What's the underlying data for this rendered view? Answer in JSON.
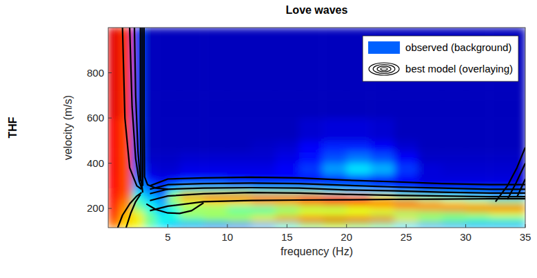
{
  "chart_data": {
    "type": "heatmap",
    "title": "Love waves",
    "row_label": "THF",
    "x_label": "frequency (Hz)",
    "y_label": "velocity (m/s)",
    "xlim": [
      0,
      35
    ],
    "ylim": [
      115,
      1000
    ],
    "xticks": [
      5,
      10,
      15,
      20,
      25,
      30,
      35
    ],
    "yticks": [
      200,
      400,
      600,
      800
    ],
    "legend": "upper right",
    "color_range": [
      0,
      1
    ],
    "x_edges": [
      0,
      1,
      2,
      3,
      4,
      5,
      6,
      8,
      10,
      12,
      14,
      16,
      18,
      20,
      22,
      24,
      26,
      28,
      30,
      32,
      35
    ],
    "y_edges": [
      115,
      140,
      165,
      190,
      215,
      240,
      265,
      290,
      320,
      350,
      400,
      450,
      500,
      600,
      700,
      800,
      900,
      1000
    ],
    "series": [
      {
        "name": "observed (background)",
        "type": "heatmap",
        "color": "jet",
        "cells": [
          [
            0.75,
            0.65,
            0.6,
            0.45,
            0.35,
            0.3,
            0.28,
            0.25,
            0.25,
            0.3,
            0.4,
            0.5,
            0.55,
            0.5,
            0.45,
            0.35,
            0.3,
            0.3,
            0.3,
            0.3
          ],
          [
            0.8,
            0.68,
            0.65,
            0.5,
            0.4,
            0.4,
            0.45,
            0.5,
            0.55,
            0.65,
            0.75,
            0.85,
            0.9,
            0.88,
            0.8,
            0.65,
            0.55,
            0.5,
            0.45,
            0.45
          ],
          [
            0.82,
            0.7,
            0.6,
            0.45,
            0.35,
            0.4,
            0.55,
            0.55,
            0.5,
            0.5,
            0.55,
            0.6,
            0.6,
            0.6,
            0.55,
            0.5,
            0.5,
            0.5,
            0.55,
            0.6
          ],
          [
            0.85,
            0.72,
            0.5,
            0.4,
            0.3,
            0.4,
            0.5,
            0.5,
            0.45,
            0.45,
            0.5,
            0.55,
            0.55,
            0.6,
            0.65,
            0.7,
            0.75,
            0.8,
            0.85,
            0.85
          ],
          [
            0.85,
            0.75,
            0.45,
            0.35,
            0.3,
            0.5,
            0.6,
            0.65,
            0.65,
            0.7,
            0.7,
            0.75,
            0.8,
            0.85,
            0.85,
            0.8,
            0.7,
            0.65,
            0.6,
            0.55
          ],
          [
            0.86,
            0.78,
            0.4,
            0.3,
            0.25,
            0.55,
            0.75,
            0.8,
            0.8,
            0.8,
            0.8,
            0.85,
            0.85,
            0.75,
            0.6,
            0.5,
            0.45,
            0.4,
            0.35,
            0.3
          ],
          [
            0.86,
            0.8,
            0.32,
            0.25,
            0.2,
            0.4,
            0.5,
            0.5,
            0.5,
            0.45,
            0.45,
            0.45,
            0.4,
            0.35,
            0.3,
            0.25,
            0.2,
            0.2,
            0.2,
            0.2
          ],
          [
            0.87,
            0.8,
            0.28,
            0.2,
            0.15,
            0.2,
            0.25,
            0.25,
            0.22,
            0.2,
            0.2,
            0.18,
            0.16,
            0.16,
            0.14,
            0.12,
            0.1,
            0.1,
            0.1,
            0.1
          ],
          [
            0.87,
            0.8,
            0.25,
            0.12,
            0.1,
            0.12,
            0.14,
            0.14,
            0.12,
            0.12,
            0.12,
            0.14,
            0.16,
            0.18,
            0.16,
            0.12,
            0.09,
            0.09,
            0.09,
            0.09
          ],
          [
            0.88,
            0.8,
            0.22,
            0.09,
            0.08,
            0.08,
            0.1,
            0.1,
            0.1,
            0.1,
            0.12,
            0.18,
            0.28,
            0.35,
            0.3,
            0.18,
            0.09,
            0.08,
            0.08,
            0.08
          ],
          [
            0.88,
            0.8,
            0.2,
            0.07,
            0.07,
            0.07,
            0.08,
            0.08,
            0.08,
            0.08,
            0.1,
            0.14,
            0.2,
            0.24,
            0.2,
            0.12,
            0.07,
            0.07,
            0.07,
            0.07
          ],
          [
            0.88,
            0.8,
            0.2,
            0.06,
            0.06,
            0.06,
            0.06,
            0.06,
            0.06,
            0.07,
            0.08,
            0.12,
            0.16,
            0.16,
            0.12,
            0.08,
            0.06,
            0.06,
            0.06,
            0.06
          ],
          [
            0.88,
            0.8,
            0.2,
            0.06,
            0.06,
            0.06,
            0.06,
            0.06,
            0.06,
            0.06,
            0.06,
            0.08,
            0.09,
            0.09,
            0.08,
            0.06,
            0.06,
            0.06,
            0.06,
            0.06
          ],
          [
            0.9,
            0.82,
            0.2,
            0.06,
            0.06,
            0.06,
            0.06,
            0.06,
            0.06,
            0.06,
            0.06,
            0.06,
            0.06,
            0.06,
            0.06,
            0.06,
            0.06,
            0.06,
            0.06,
            0.06
          ],
          [
            0.9,
            0.82,
            0.2,
            0.06,
            0.06,
            0.06,
            0.06,
            0.06,
            0.06,
            0.06,
            0.06,
            0.06,
            0.06,
            0.06,
            0.06,
            0.06,
            0.06,
            0.06,
            0.06,
            0.06
          ],
          [
            0.9,
            0.82,
            0.2,
            0.06,
            0.06,
            0.06,
            0.06,
            0.06,
            0.06,
            0.06,
            0.06,
            0.06,
            0.06,
            0.06,
            0.06,
            0.06,
            0.06,
            0.06,
            0.06,
            0.06
          ],
          [
            0.9,
            0.82,
            0.2,
            0.06,
            0.06,
            0.06,
            0.06,
            0.06,
            0.06,
            0.06,
            0.06,
            0.06,
            0.06,
            0.06,
            0.06,
            0.06,
            0.06,
            0.06,
            0.06,
            0.06
          ]
        ]
      },
      {
        "name": "best model (overlaying)",
        "type": "contour",
        "color": "#000000",
        "contours": [
          {
            "x": [
              3.5,
              5,
              8,
              12,
              16,
              20,
              24,
              28,
              32,
              35
            ],
            "y": [
              300,
              330,
              335,
              338,
              335,
              325,
              318,
              310,
              305,
              305
            ]
          },
          {
            "x": [
              3.5,
              5,
              8,
              12,
              16,
              20,
              24,
              28,
              32,
              35
            ],
            "y": [
              285,
              305,
              310,
              312,
              310,
              302,
              295,
              290,
              285,
              285
            ]
          },
          {
            "x": [
              3.5,
              5,
              8,
              12,
              16,
              20,
              24,
              28,
              32,
              35
            ],
            "y": [
              265,
              285,
              290,
              292,
              290,
              282,
              278,
              272,
              268,
              268
            ]
          },
          {
            "x": [
              3.5,
              5,
              8,
              12,
              16,
              20,
              24,
              28,
              32,
              35
            ],
            "y": [
              235,
              255,
              265,
              270,
              268,
              262,
              258,
              255,
              252,
              252
            ]
          },
          {
            "x": [
              3.5,
              5,
              8,
              12,
              16,
              20,
              24,
              28,
              32,
              35
            ],
            "y": [
              190,
              210,
              230,
              235,
              237,
              238,
              240,
              241,
              243,
              243
            ]
          },
          {
            "x": [
              3.2,
              4,
              5,
              6,
              7,
              8
            ],
            "y": [
              220,
              195,
              180,
              178,
              190,
              225
            ]
          },
          {
            "x": [
              2.7,
              2.7,
              2.75,
              2.9
            ],
            "y": [
              1000,
              600,
              330,
              270
            ]
          },
          {
            "x": [
              2.85,
              2.85,
              2.9
            ],
            "y": [
              1000,
              600,
              300
            ]
          },
          {
            "x": [
              3.0,
              3.0,
              3.05,
              3.3,
              4,
              5
            ],
            "y": [
              1000,
              600,
              340,
              305,
              290,
              285
            ]
          },
          {
            "x": [
              1.2,
              1.4,
              1.8,
              2.4,
              2.8
            ],
            "y": [
              1000,
              600,
              380,
              300,
              285
            ]
          },
          {
            "x": [
              1.8,
              2.0,
              2.3,
              2.6,
              2.8
            ],
            "y": [
              1000,
              650,
              420,
              320,
              290
            ]
          },
          {
            "x": [
              2.2,
              2.3,
              2.5,
              2.7
            ],
            "y": [
              1000,
              700,
              450,
              320
            ]
          },
          {
            "x": [
              0.8,
              1.2,
              1.8,
              2.4,
              2.8
            ],
            "y": [
              115,
              170,
              220,
              255,
              270
            ]
          },
          {
            "x": [
              1.5,
              1.9,
              2.3,
              2.7
            ],
            "y": [
              115,
              180,
              230,
              262
            ]
          },
          {
            "x": [
              32.5,
              33.5,
              34.3,
              35
            ],
            "y": [
              230,
              300,
              380,
              470
            ]
          },
          {
            "x": [
              33.5,
              34.2,
              35
            ],
            "y": [
              240,
              310,
              400
            ]
          },
          {
            "x": [
              34.3,
              35
            ],
            "y": [
              250,
              330
            ]
          }
        ]
      }
    ]
  }
}
